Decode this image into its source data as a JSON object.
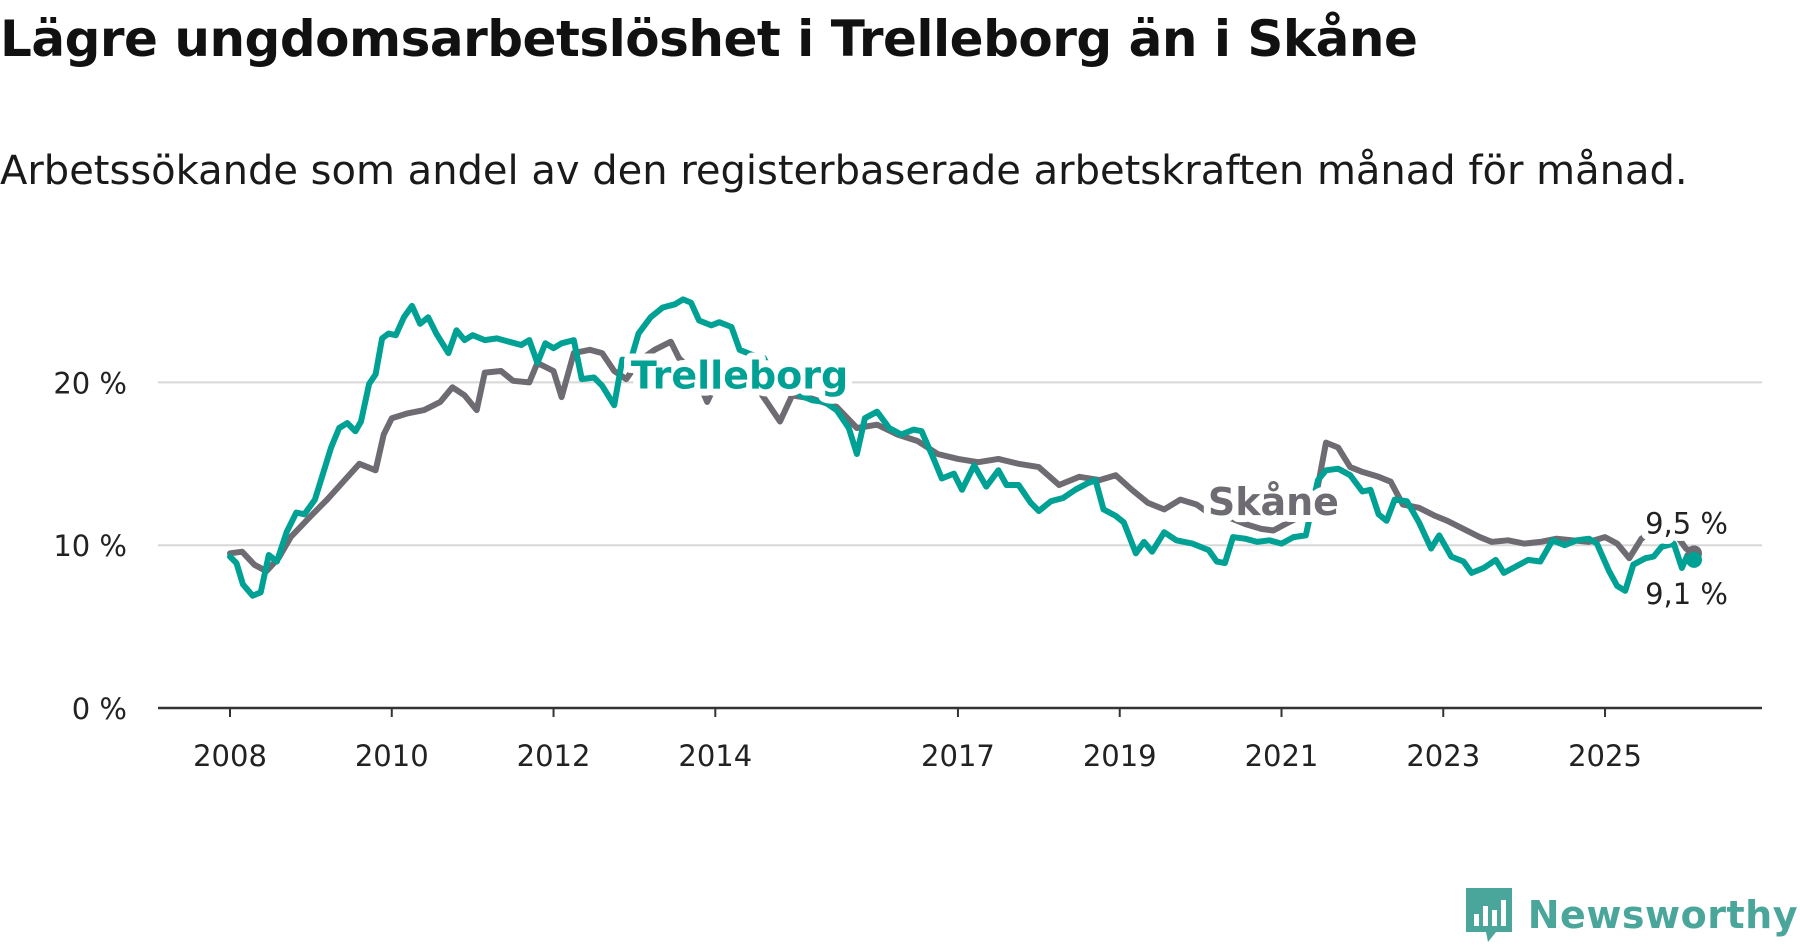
{
  "header": {
    "title": "Lägre ungdomsarbetslöshet i Trelleborg än i Skåne",
    "subtitle": "Arbetssökande som andel av den registerbaserade arbetskraften månad för månad."
  },
  "brand": {
    "name": "Newsworthy"
  },
  "colors": {
    "trelleborg": "#00a195",
    "skane": "#6e6c72",
    "grid": "#d8d8d8",
    "axis": "#333333"
  },
  "chart_data": {
    "type": "line",
    "title": "Lägre ungdomsarbetslöshet i Trelleborg än i Skåne",
    "subtitle": "Arbetssökande som andel av den registerbaserade arbetskraften månad för månad.",
    "xlabel": "",
    "ylabel": "",
    "xlim": [
      2008.0,
      2026.1
    ],
    "ylim": [
      0,
      25
    ],
    "xticks": [
      2008,
      2010,
      2012,
      2014,
      2017,
      2019,
      2021,
      2023,
      2025
    ],
    "xtick_labels": [
      "2008",
      "2010",
      "2012",
      "2014",
      "2017",
      "2019",
      "2021",
      "2023",
      "2025"
    ],
    "yticks": [
      0,
      10,
      20
    ],
    "ytick_labels": [
      "0 %",
      "10 %",
      "20 %"
    ],
    "grid": true,
    "series": [
      {
        "name": "Skåne",
        "label": "Skåne",
        "end_label": "9,5 %",
        "points": [
          [
            2008.0,
            9.5
          ],
          [
            2008.15,
            9.6
          ],
          [
            2008.3,
            8.8
          ],
          [
            2008.45,
            8.4
          ],
          [
            2008.6,
            9.2
          ],
          [
            2008.75,
            10.5
          ],
          [
            2009.0,
            11.8
          ],
          [
            2009.2,
            12.8
          ],
          [
            2009.4,
            13.9
          ],
          [
            2009.6,
            15.0
          ],
          [
            2009.8,
            14.6
          ],
          [
            2009.9,
            16.8
          ],
          [
            2010.0,
            17.8
          ],
          [
            2010.2,
            18.1
          ],
          [
            2010.4,
            18.3
          ],
          [
            2010.6,
            18.8
          ],
          [
            2010.75,
            19.7
          ],
          [
            2010.9,
            19.2
          ],
          [
            2011.05,
            18.3
          ],
          [
            2011.15,
            20.6
          ],
          [
            2011.35,
            20.7
          ],
          [
            2011.5,
            20.1
          ],
          [
            2011.7,
            20.0
          ],
          [
            2011.8,
            21.2
          ],
          [
            2012.0,
            20.7
          ],
          [
            2012.1,
            19.1
          ],
          [
            2012.25,
            21.8
          ],
          [
            2012.45,
            22.0
          ],
          [
            2012.6,
            21.8
          ],
          [
            2012.75,
            20.7
          ],
          [
            2012.9,
            20.2
          ],
          [
            2013.05,
            21.3
          ],
          [
            2013.25,
            22.0
          ],
          [
            2013.45,
            22.5
          ],
          [
            2013.55,
            21.5
          ],
          [
            2013.75,
            20.5
          ],
          [
            2013.9,
            18.8
          ],
          [
            2014.05,
            20.4
          ],
          [
            2014.2,
            21.0
          ],
          [
            2014.35,
            20.6
          ],
          [
            2014.5,
            19.8
          ],
          [
            2014.65,
            18.7
          ],
          [
            2014.8,
            17.6
          ],
          [
            2014.95,
            19.2
          ],
          [
            2015.2,
            19.0
          ],
          [
            2015.5,
            18.5
          ],
          [
            2015.75,
            17.2
          ],
          [
            2016.0,
            17.4
          ],
          [
            2016.25,
            16.8
          ],
          [
            2016.5,
            16.4
          ],
          [
            2016.75,
            15.6
          ],
          [
            2017.0,
            15.3
          ],
          [
            2017.25,
            15.1
          ],
          [
            2017.5,
            15.3
          ],
          [
            2017.75,
            15.0
          ],
          [
            2018.0,
            14.8
          ],
          [
            2018.25,
            13.7
          ],
          [
            2018.5,
            14.2
          ],
          [
            2018.75,
            14.0
          ],
          [
            2018.95,
            14.3
          ],
          [
            2019.15,
            13.4
          ],
          [
            2019.35,
            12.6
          ],
          [
            2019.55,
            12.2
          ],
          [
            2019.75,
            12.8
          ],
          [
            2019.95,
            12.5
          ],
          [
            2020.15,
            11.8
          ],
          [
            2020.35,
            11.7
          ],
          [
            2020.55,
            11.3
          ],
          [
            2020.75,
            11.0
          ],
          [
            2020.9,
            10.9
          ],
          [
            2021.05,
            11.3
          ],
          [
            2021.25,
            11.8
          ],
          [
            2021.4,
            12.3
          ],
          [
            2021.55,
            16.3
          ],
          [
            2021.7,
            16.0
          ],
          [
            2021.85,
            14.8
          ],
          [
            2022.0,
            14.5
          ],
          [
            2022.2,
            14.2
          ],
          [
            2022.35,
            13.9
          ],
          [
            2022.5,
            12.5
          ],
          [
            2022.7,
            12.3
          ],
          [
            2022.9,
            11.8
          ],
          [
            2023.05,
            11.5
          ],
          [
            2023.25,
            11.0
          ],
          [
            2023.45,
            10.5
          ],
          [
            2023.6,
            10.2
          ],
          [
            2023.8,
            10.3
          ],
          [
            2024.0,
            10.1
          ],
          [
            2024.2,
            10.2
          ],
          [
            2024.4,
            10.4
          ],
          [
            2024.6,
            10.3
          ],
          [
            2024.8,
            10.2
          ],
          [
            2025.0,
            10.5
          ],
          [
            2025.15,
            10.1
          ],
          [
            2025.3,
            9.2
          ],
          [
            2025.45,
            10.4
          ],
          [
            2025.6,
            10.9
          ],
          [
            2025.75,
            10.7
          ],
          [
            2025.9,
            10.5
          ],
          [
            2026.0,
            9.8
          ],
          [
            2026.1,
            9.5
          ]
        ]
      },
      {
        "name": "Trelleborg",
        "label": "Trelleborg",
        "end_label": "9,1 %",
        "points": [
          [
            2008.0,
            9.3
          ],
          [
            2008.08,
            8.9
          ],
          [
            2008.16,
            7.6
          ],
          [
            2008.28,
            6.9
          ],
          [
            2008.38,
            7.1
          ],
          [
            2008.48,
            9.4
          ],
          [
            2008.58,
            9.0
          ],
          [
            2008.7,
            10.8
          ],
          [
            2008.82,
            12.0
          ],
          [
            2008.92,
            11.9
          ],
          [
            2009.05,
            12.8
          ],
          [
            2009.15,
            14.4
          ],
          [
            2009.25,
            16.0
          ],
          [
            2009.35,
            17.2
          ],
          [
            2009.45,
            17.5
          ],
          [
            2009.55,
            17.0
          ],
          [
            2009.62,
            17.6
          ],
          [
            2009.72,
            19.9
          ],
          [
            2009.8,
            20.5
          ],
          [
            2009.88,
            22.7
          ],
          [
            2009.96,
            23.0
          ],
          [
            2010.05,
            22.9
          ],
          [
            2010.15,
            24.0
          ],
          [
            2010.25,
            24.7
          ],
          [
            2010.35,
            23.6
          ],
          [
            2010.45,
            24.0
          ],
          [
            2010.55,
            23.0
          ],
          [
            2010.7,
            21.8
          ],
          [
            2010.8,
            23.2
          ],
          [
            2010.9,
            22.6
          ],
          [
            2011.0,
            22.9
          ],
          [
            2011.15,
            22.6
          ],
          [
            2011.3,
            22.7
          ],
          [
            2011.45,
            22.5
          ],
          [
            2011.6,
            22.3
          ],
          [
            2011.7,
            22.6
          ],
          [
            2011.8,
            21.2
          ],
          [
            2011.9,
            22.4
          ],
          [
            2012.0,
            22.1
          ],
          [
            2012.1,
            22.4
          ],
          [
            2012.25,
            22.6
          ],
          [
            2012.35,
            20.2
          ],
          [
            2012.5,
            20.3
          ],
          [
            2012.6,
            19.8
          ],
          [
            2012.75,
            18.6
          ],
          [
            2012.85,
            21.4
          ],
          [
            2012.95,
            21.3
          ],
          [
            2013.05,
            23.0
          ],
          [
            2013.2,
            24.0
          ],
          [
            2013.35,
            24.6
          ],
          [
            2013.5,
            24.8
          ],
          [
            2013.6,
            25.1
          ],
          [
            2013.7,
            24.9
          ],
          [
            2013.8,
            23.8
          ],
          [
            2013.95,
            23.5
          ],
          [
            2014.05,
            23.7
          ],
          [
            2014.2,
            23.4
          ],
          [
            2014.3,
            22.0
          ],
          [
            2014.45,
            21.7
          ],
          [
            2014.6,
            21.5
          ],
          [
            2014.7,
            20.5
          ],
          [
            2014.85,
            19.6
          ],
          [
            2014.95,
            19.8
          ],
          [
            2015.05,
            19.2
          ],
          [
            2015.2,
            18.9
          ],
          [
            2015.35,
            18.8
          ],
          [
            2015.5,
            18.3
          ],
          [
            2015.65,
            17.2
          ],
          [
            2015.75,
            15.6
          ],
          [
            2015.85,
            17.8
          ],
          [
            2016.0,
            18.2
          ],
          [
            2016.15,
            17.2
          ],
          [
            2016.3,
            16.8
          ],
          [
            2016.45,
            17.1
          ],
          [
            2016.55,
            17.0
          ],
          [
            2016.7,
            15.3
          ],
          [
            2016.8,
            14.1
          ],
          [
            2016.95,
            14.4
          ],
          [
            2017.05,
            13.4
          ],
          [
            2017.2,
            14.9
          ],
          [
            2017.35,
            13.6
          ],
          [
            2017.5,
            14.6
          ],
          [
            2017.6,
            13.7
          ],
          [
            2017.75,
            13.7
          ],
          [
            2017.9,
            12.6
          ],
          [
            2018.0,
            12.1
          ],
          [
            2018.15,
            12.7
          ],
          [
            2018.3,
            12.9
          ],
          [
            2018.45,
            13.4
          ],
          [
            2018.6,
            13.8
          ],
          [
            2018.7,
            14.0
          ],
          [
            2018.8,
            12.2
          ],
          [
            2018.95,
            11.8
          ],
          [
            2019.05,
            11.4
          ],
          [
            2019.2,
            9.5
          ],
          [
            2019.3,
            10.2
          ],
          [
            2019.4,
            9.6
          ],
          [
            2019.55,
            10.8
          ],
          [
            2019.7,
            10.3
          ],
          [
            2019.9,
            10.1
          ],
          [
            2020.1,
            9.7
          ],
          [
            2020.2,
            9.0
          ],
          [
            2020.3,
            8.9
          ],
          [
            2020.4,
            10.5
          ],
          [
            2020.55,
            10.4
          ],
          [
            2020.7,
            10.2
          ],
          [
            2020.85,
            10.3
          ],
          [
            2021.0,
            10.1
          ],
          [
            2021.15,
            10.5
          ],
          [
            2021.3,
            10.6
          ],
          [
            2021.45,
            14.0
          ],
          [
            2021.55,
            14.6
          ],
          [
            2021.7,
            14.7
          ],
          [
            2021.85,
            14.3
          ],
          [
            2022.0,
            13.3
          ],
          [
            2022.1,
            13.4
          ],
          [
            2022.2,
            11.9
          ],
          [
            2022.3,
            11.5
          ],
          [
            2022.4,
            12.8
          ],
          [
            2022.55,
            12.7
          ],
          [
            2022.7,
            11.4
          ],
          [
            2022.85,
            9.8
          ],
          [
            2022.95,
            10.6
          ],
          [
            2023.1,
            9.3
          ],
          [
            2023.25,
            9.0
          ],
          [
            2023.35,
            8.3
          ],
          [
            2023.5,
            8.6
          ],
          [
            2023.65,
            9.1
          ],
          [
            2023.75,
            8.3
          ],
          [
            2023.9,
            8.7
          ],
          [
            2024.05,
            9.1
          ],
          [
            2024.2,
            9.0
          ],
          [
            2024.35,
            10.3
          ],
          [
            2024.5,
            10.0
          ],
          [
            2024.65,
            10.3
          ],
          [
            2024.8,
            10.4
          ],
          [
            2024.9,
            10.1
          ],
          [
            2025.05,
            8.4
          ],
          [
            2025.15,
            7.5
          ],
          [
            2025.25,
            7.2
          ],
          [
            2025.35,
            8.8
          ],
          [
            2025.5,
            9.2
          ],
          [
            2025.6,
            9.3
          ],
          [
            2025.7,
            9.9
          ],
          [
            2025.85,
            10.1
          ],
          [
            2025.95,
            8.6
          ],
          [
            2026.02,
            9.4
          ],
          [
            2026.1,
            9.1
          ]
        ]
      }
    ],
    "annotations": [
      "Trelleborg",
      "Skåne",
      "9,5 %",
      "9,1 %"
    ]
  }
}
